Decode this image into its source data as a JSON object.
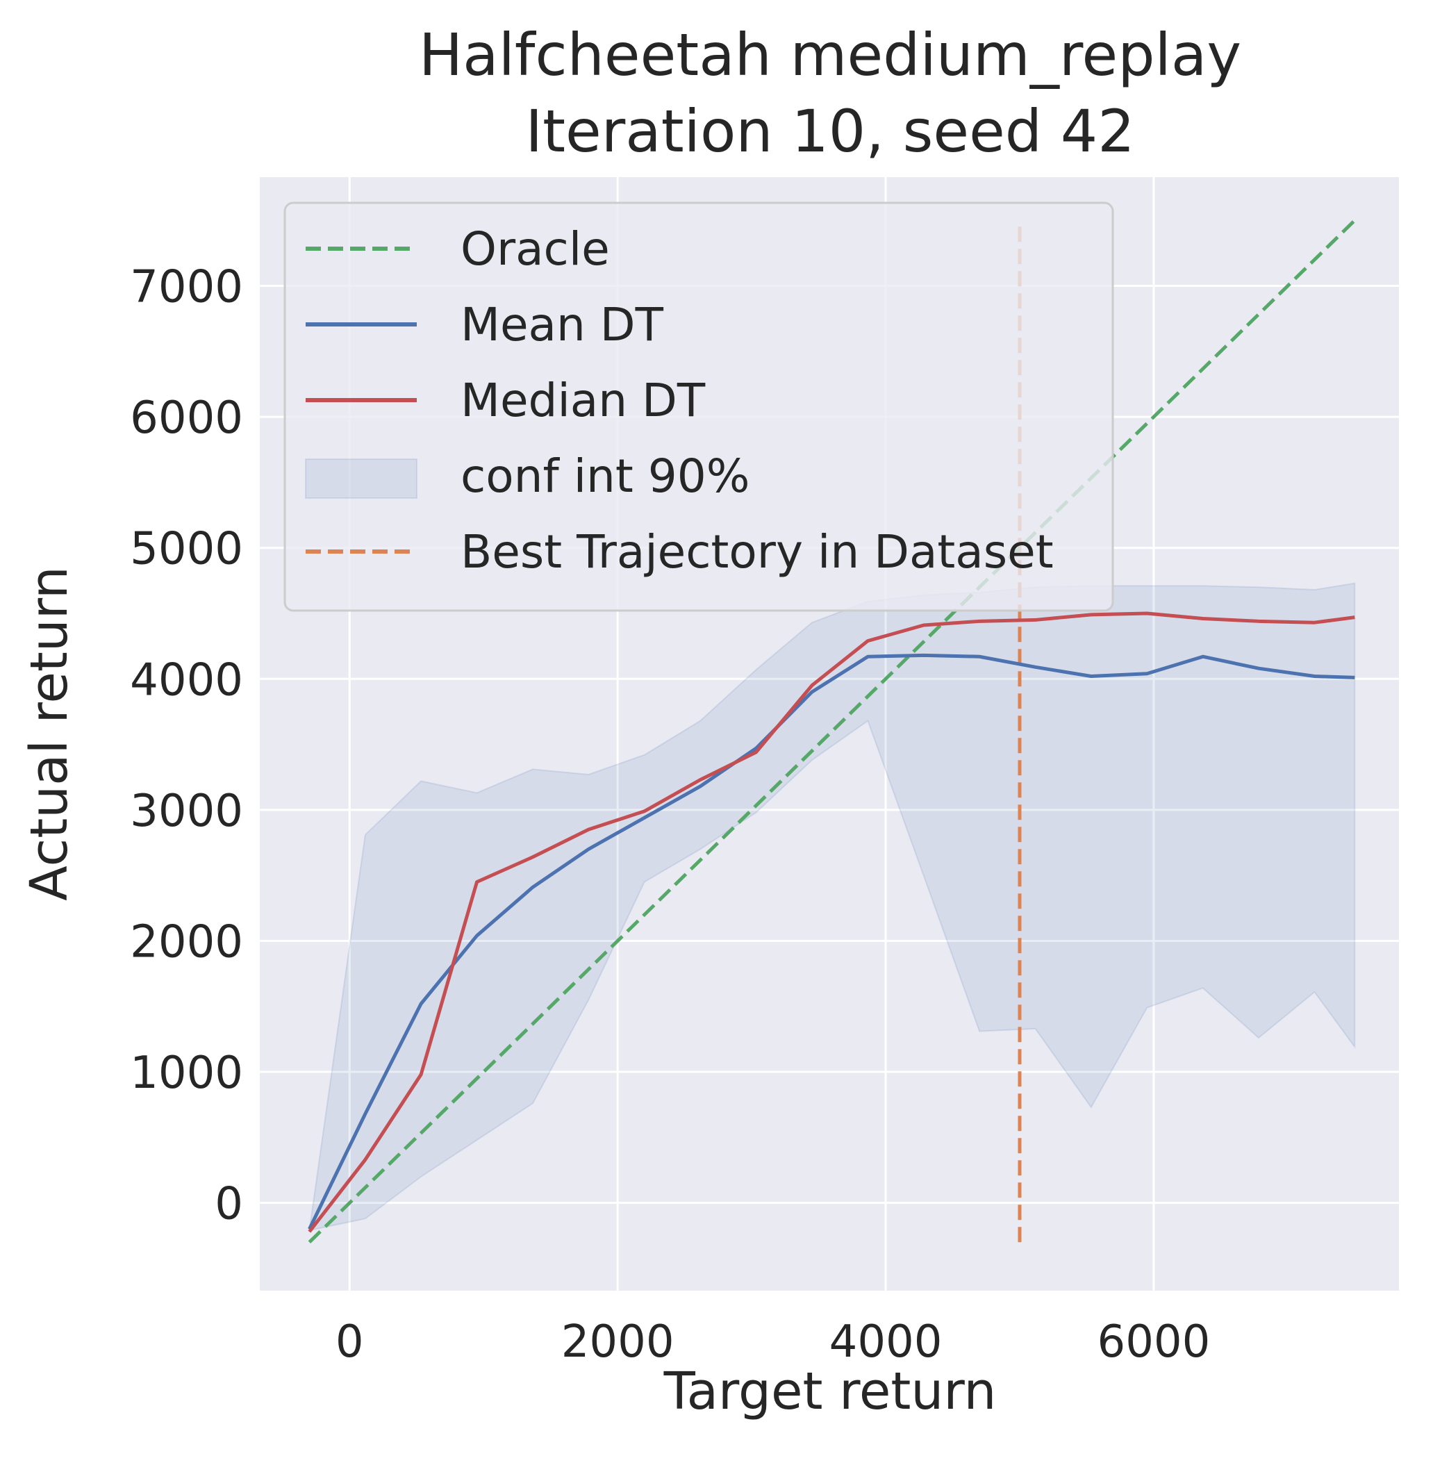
{
  "chart_data": {
    "type": "line",
    "title": [
      "Halfcheetah medium_replay",
      "Iteration 10, seed 42"
    ],
    "xlabel": "Target return",
    "ylabel": "Actual return",
    "xlim": [
      -670,
      7830
    ],
    "ylim": [
      -670,
      7830
    ],
    "xticks": [
      0,
      2000,
      4000,
      6000
    ],
    "yticks": [
      0,
      1000,
      2000,
      3000,
      4000,
      5000,
      6000,
      7000
    ],
    "grid": true,
    "legend_position": "upper-left",
    "x": [
      -300,
      117,
      533,
      950,
      1367,
      1783,
      2200,
      2617,
      3033,
      3450,
      3867,
      4283,
      4700,
      5117,
      5533,
      5950,
      6367,
      6783,
      7200,
      7500
    ],
    "series": [
      {
        "name": "Oracle",
        "style": "dashed",
        "color": "#55a868",
        "points": [
          [
            -300,
            -300
          ],
          [
            7500,
            7500
          ]
        ]
      },
      {
        "name": "Mean DT",
        "style": "solid",
        "color": "#4c72b0",
        "values": [
          -200,
          680,
          1520,
          2040,
          2410,
          2700,
          2940,
          3180,
          3470,
          3900,
          4170,
          4180,
          4170,
          4090,
          4020,
          4040,
          4170,
          4080,
          4020,
          4010
        ]
      },
      {
        "name": "Median DT",
        "style": "solid",
        "color": "#c44e52",
        "values": [
          -220,
          330,
          980,
          2450,
          2640,
          2850,
          2990,
          3230,
          3440,
          3950,
          4290,
          4410,
          4440,
          4450,
          4490,
          4500,
          4460,
          4440,
          4430,
          4470
        ]
      }
    ],
    "band": {
      "name": "conf int 90%",
      "color": "#4c72b0",
      "lower": [
        -210,
        -120,
        200,
        480,
        760,
        1550,
        2450,
        2700,
        2980,
        3380,
        3680,
        2500,
        1310,
        1330,
        730,
        1490,
        1640,
        1260,
        1610,
        1190
      ],
      "upper": [
        -210,
        2810,
        3220,
        3130,
        3310,
        3270,
        3420,
        3680,
        4070,
        4430,
        4590,
        4640,
        4660,
        4700,
        4710,
        4710,
        4710,
        4700,
        4680,
        4730
      ]
    },
    "vline": {
      "name": "Best Trajectory in Dataset",
      "style": "dashed",
      "color": "#dd8452",
      "x": 5000,
      "y_range": [
        -300,
        7500
      ]
    }
  }
}
